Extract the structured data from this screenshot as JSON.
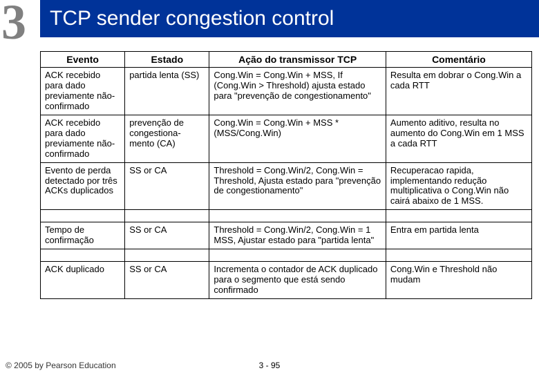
{
  "header": {
    "chapter": "3",
    "title": "TCP sender congestion control"
  },
  "columns": {
    "c0": "Evento",
    "c1": "Estado",
    "c2": "Ação do transmissor TCP",
    "c3": "Comentário"
  },
  "rows": {
    "r0": {
      "evento": "ACK recebido para dado previamente não-confirmado",
      "estado": "partida lenta (SS)",
      "acao": "Cong.Win = Cong.Win + MSS, If (Cong.Win > Threshold) ajusta estado para \"prevenção de congestionamento\"",
      "coment": "Resulta em dobrar o Cong.Win a cada RTT"
    },
    "r1": {
      "evento": "ACK recebido para dado previamente não-confirmado",
      "estado": "prevenção de congestiona-mento (CA)",
      "acao": "Cong.Win = Cong.Win + MSS * (MSS/Cong.Win)",
      "coment": "Aumento aditivo, resulta no aumento do Cong.Win em 1 MSS a cada RTT"
    },
    "r2": {
      "evento": "Evento de perda detectado por três ACKs duplicados",
      "estado": "SS or CA",
      "acao": "Threshold = Cong.Win/2, Cong.Win = Threshold, Ajusta estado para \"prevenção de congestionamento\"",
      "coment": "Recuperacao rapida, implementando redução multiplicativa o Cong.Win não cairá abaixo de 1 MSS."
    },
    "r3": {
      "evento": "Tempo de confirmação",
      "estado": "SS or CA",
      "acao": "Threshold = Cong.Win/2, Cong.Win = 1 MSS, Ajustar estado para \"partida lenta\"",
      "coment": "Entra em partida lenta"
    },
    "r4": {
      "evento": "ACK duplicado",
      "estado": "SS or CA",
      "acao": "Incrementa o contador de ACK duplicado para o segmento que está sendo confirmado",
      "coment": "Cong.Win e Threshold não mudam"
    }
  },
  "footer": {
    "copyright": "© 2005 by Pearson Education",
    "slide": "3 - 95"
  }
}
